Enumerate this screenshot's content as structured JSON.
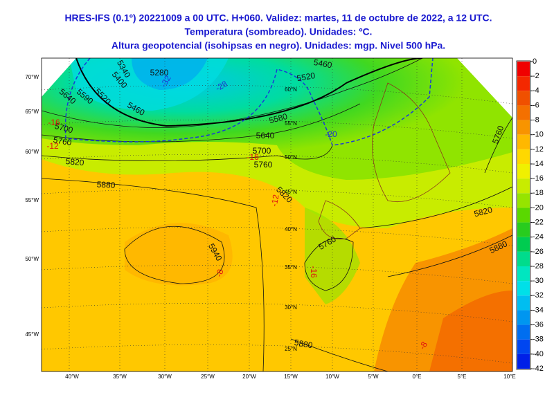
{
  "header": {
    "lines": [
      "HRES-IFS (0.1º) 20221009 a 00 UTC. H+060. Validez: martes, 11 de octubre de 2022, a 12 UTC.",
      "Temperatura (sombreado). Unidades: ºC.",
      "Altura geopotencial (isohipsas en negro). Unidades: mgp. Nivel 500 hPa."
    ]
  },
  "colorbar": {
    "ticks": [
      0,
      -2,
      -4,
      -6,
      -8,
      -10,
      -12,
      -14,
      -16,
      -18,
      -20,
      -22,
      -24,
      -26,
      -28,
      -30,
      -32,
      -34,
      -36,
      -38,
      -40,
      -42
    ],
    "colors": [
      "#f00000",
      "#f42800",
      "#f05000",
      "#f47000",
      "#f89400",
      "#ffb800",
      "#ffd800",
      "#f0f000",
      "#c8ec00",
      "#96e400",
      "#5ad800",
      "#28cc1e",
      "#00cc50",
      "#00dc8c",
      "#00e6c0",
      "#00e0e8",
      "#00bef0",
      "#0096f0",
      "#006ef0",
      "#0046f0",
      "#0020e8"
    ]
  },
  "lon_labels": [
    "40°W",
    "35°W",
    "30°W",
    "25°W",
    "20°W",
    "15°W",
    "10°W",
    "5°W",
    "0°E",
    "5°E",
    "10°E"
  ],
  "left_labels": [
    "70°W",
    "65°W",
    "60°W",
    "55°W",
    "50°W",
    "45°W"
  ],
  "lat_labels": [
    "60°N",
    "55°N",
    "50°N",
    "45°N",
    "40°N",
    "35°N",
    "30°N",
    "25°N"
  ],
  "height_labels": [
    "5280",
    "5340",
    "5400",
    "5460",
    "5520",
    "5590",
    "5640",
    "5700",
    "5760",
    "5820",
    "5880",
    "5940",
    "5460",
    "5520",
    "5580",
    "5640",
    "5700",
    "5760",
    "5820",
    "5760",
    "5820",
    "5880",
    "5760",
    "5880"
  ],
  "temp_labels": [
    {
      "text": "-32",
      "color": "#2030d0"
    },
    {
      "text": "-28",
      "color": "#2030d0"
    },
    {
      "text": "-20",
      "color": "#2030d0"
    },
    {
      "text": "-16",
      "color": "#e01010"
    },
    {
      "text": "-12",
      "color": "#e01010"
    },
    {
      "text": "-16",
      "color": "#e01010"
    },
    {
      "text": "-12",
      "color": "#e01010"
    },
    {
      "text": "-16",
      "color": "#e01010"
    },
    {
      "text": "-8",
      "color": "#e01010"
    },
    {
      "text": "-8",
      "color": "#e01010"
    }
  ]
}
